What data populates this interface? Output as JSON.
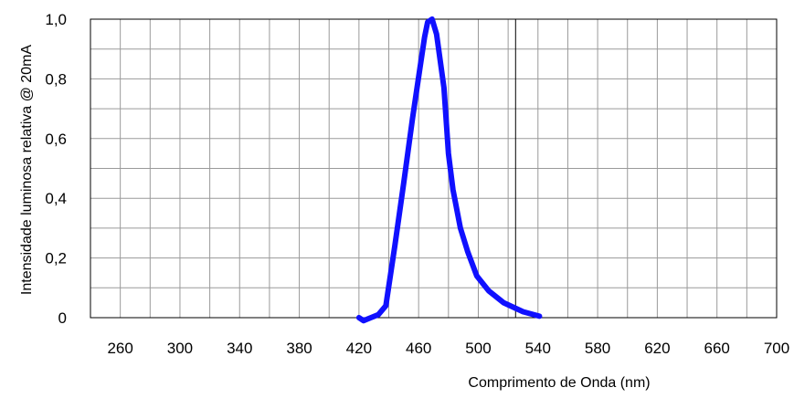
{
  "chart_data": {
    "type": "line",
    "title": "",
    "xlabel": "Comprimento de Onda (nm)",
    "ylabel": "Intensidade luminosa relativa @ 20mA",
    "xlim": [
      240,
      700
    ],
    "ylim": [
      0,
      1.0
    ],
    "x_ticks": [
      260,
      300,
      340,
      380,
      420,
      460,
      500,
      540,
      580,
      620,
      660,
      700
    ],
    "x_tick_labels": [
      "260",
      "300",
      "340",
      "380",
      "420",
      "460",
      "500",
      "540",
      "580",
      "620",
      "660",
      "700"
    ],
    "y_ticks": [
      0,
      0.2,
      0.4,
      0.6,
      0.8,
      1.0
    ],
    "y_tick_labels": [
      "0",
      "0,2",
      "0,4",
      "0,6",
      "0,8",
      "1,0"
    ],
    "grid": true,
    "series": [
      {
        "color": "#1010ff",
        "x": [
          420,
          423,
          428,
          433,
          438,
          444,
          450,
          456,
          461,
          464,
          466,
          469,
          472,
          477,
          480,
          483,
          488,
          493,
          499,
          507,
          517,
          530,
          541
        ],
        "y": [
          0.0,
          -0.01,
          0.0,
          0.01,
          0.04,
          0.24,
          0.45,
          0.67,
          0.84,
          0.94,
          0.99,
          1.0,
          0.95,
          0.77,
          0.55,
          0.43,
          0.3,
          0.22,
          0.14,
          0.09,
          0.05,
          0.02,
          0.005
        ]
      }
    ]
  }
}
